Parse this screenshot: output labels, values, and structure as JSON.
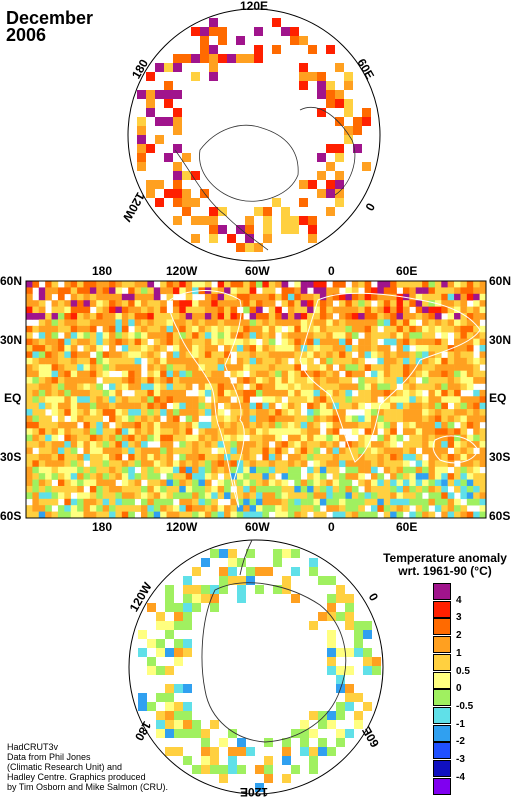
{
  "header": {
    "title_line1": "December",
    "title_line2": "2006"
  },
  "north_polar": {
    "lon_labels": [
      "120E",
      "180",
      "60E",
      "120W",
      "0"
    ]
  },
  "center_map": {
    "top_lon_labels": [
      "180",
      "120W",
      "60W",
      "0",
      "60E"
    ],
    "bottom_lon_labels": [
      "180",
      "120W",
      "60W",
      "0",
      "60E"
    ],
    "lat_labels_left": [
      "60N",
      "30N",
      "EQ",
      "30S",
      "60S"
    ],
    "lat_labels_right": [
      "60N",
      "30N",
      "EQ",
      "30S",
      "60S"
    ]
  },
  "south_polar": {
    "lon_labels": [
      "120W",
      "0",
      "180",
      "60E",
      "120E"
    ]
  },
  "legend": {
    "title_line1": "Temperature anomaly",
    "title_line2": "wrt. 1961-90  (°C)",
    "labels": [
      "4",
      "3",
      "2",
      "1",
      "0.5",
      "0",
      "-0.5",
      "-1",
      "-2",
      "-3",
      "-4"
    ],
    "colors": [
      "#a0148c",
      "#ff2000",
      "#ff6a00",
      "#ffa020",
      "#ffd040",
      "#ffff80",
      "#a0f060",
      "#60e0e8",
      "#30a0f0",
      "#2050ff",
      "#1010c0",
      "#8000f0"
    ]
  },
  "credits": {
    "line1": "HadCRUT3v",
    "line2": "Data from Phil Jones",
    "line3": "(Climatic Research Unit) and",
    "line4": "Hadley Centre.  Graphics produced",
    "line5": "by Tim Osborn and Mike Salmon (CRU)."
  }
}
